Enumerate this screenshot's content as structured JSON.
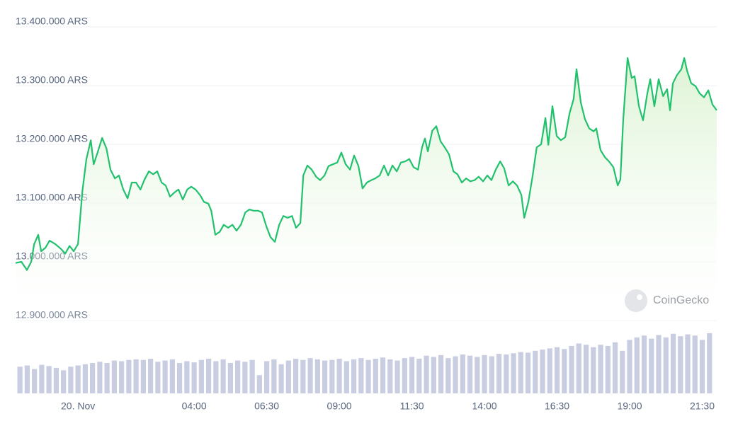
{
  "chart_data": [
    {
      "type": "line",
      "watermark": "CoinGecko",
      "color": "#21c16d",
      "grid": true,
      "xlim": [
        -2.15,
        22.0
      ],
      "xticks": [
        {
          "value": 0,
          "label": "20. Nov"
        },
        {
          "value": 4,
          "label": "04:00"
        },
        {
          "value": 6.5,
          "label": "06:30"
        },
        {
          "value": 9,
          "label": "09:00"
        },
        {
          "value": 11.5,
          "label": "11:30"
        },
        {
          "value": 14,
          "label": "14:00"
        },
        {
          "value": 16.5,
          "label": "16:30"
        },
        {
          "value": 19,
          "label": "19:00"
        },
        {
          "value": 21.5,
          "label": "21:30"
        }
      ],
      "ylim": [
        12900000,
        13400000
      ],
      "yticks": [
        {
          "value": 12900000,
          "label": "12.900.000 ARS"
        },
        {
          "value": 13000000,
          "label": "13.000.000 ARS"
        },
        {
          "value": 13100000,
          "label": "13.100.000 ARS"
        },
        {
          "value": 13200000,
          "label": "13.200.000 ARS"
        },
        {
          "value": 13300000,
          "label": "13.300.000 ARS"
        },
        {
          "value": 13400000,
          "label": "13.400.000 ARS"
        }
      ],
      "x": [
        -2.15,
        -1.95,
        -1.76,
        -1.61,
        -1.51,
        -1.37,
        -1.27,
        -1.12,
        -0.98,
        -0.78,
        -0.59,
        -0.44,
        -0.29,
        -0.15,
        0,
        0.15,
        0.29,
        0.44,
        0.54,
        0.68,
        0.83,
        0.98,
        1.12,
        1.27,
        1.41,
        1.56,
        1.71,
        1.85,
        2.0,
        2.15,
        2.29,
        2.44,
        2.59,
        2.73,
        2.88,
        3.02,
        3.17,
        3.32,
        3.46,
        3.61,
        3.76,
        3.9,
        4.05,
        4.2,
        4.34,
        4.49,
        4.59,
        4.73,
        4.88,
        5.02,
        5.17,
        5.32,
        5.46,
        5.61,
        5.76,
        5.9,
        6.05,
        6.2,
        6.34,
        6.49,
        6.63,
        6.78,
        6.93,
        7.07,
        7.22,
        7.37,
        7.51,
        7.66,
        7.76,
        7.9,
        8.05,
        8.2,
        8.34,
        8.49,
        8.63,
        8.78,
        8.93,
        9.07,
        9.22,
        9.37,
        9.51,
        9.66,
        9.8,
        9.95,
        10.1,
        10.24,
        10.39,
        10.54,
        10.68,
        10.83,
        10.98,
        11.12,
        11.27,
        11.41,
        11.56,
        11.71,
        11.85,
        11.95,
        12.05,
        12.2,
        12.34,
        12.49,
        12.63,
        12.78,
        12.93,
        13.07,
        13.22,
        13.37,
        13.51,
        13.66,
        13.8,
        13.95,
        14.1,
        14.24,
        14.39,
        14.54,
        14.68,
        14.83,
        14.98,
        15.12,
        15.27,
        15.37,
        15.51,
        15.66,
        15.8,
        15.95,
        16.1,
        16.2,
        16.34,
        16.49,
        16.63,
        16.78,
        16.93,
        17.07,
        17.17,
        17.32,
        17.46,
        17.61,
        17.76,
        17.85,
        18.0,
        18.15,
        18.29,
        18.44,
        18.59,
        18.68,
        18.78,
        18.93,
        19.07,
        19.17,
        19.32,
        19.46,
        19.61,
        19.71,
        19.85,
        20.0,
        20.15,
        20.29,
        20.39,
        20.49,
        20.63,
        20.78,
        20.88,
        20.98,
        21.12,
        21.27,
        21.41,
        21.56,
        21.71,
        21.85,
        22.0
      ],
      "series": [
        {
          "values": [
            12998000,
            13000000,
            12986000,
            13000000,
            13030000,
            13046000,
            13018000,
            13024000,
            13036000,
            13030000,
            13022000,
            13014000,
            13027000,
            13018000,
            13030000,
            13120000,
            13175000,
            13207000,
            13166000,
            13187000,
            13211000,
            13193000,
            13157000,
            13142000,
            13147000,
            13123000,
            13108000,
            13135000,
            13135000,
            13123000,
            13140000,
            13154000,
            13149000,
            13154000,
            13135000,
            13130000,
            13111000,
            13118000,
            13123000,
            13106000,
            13123000,
            13128000,
            13123000,
            13114000,
            13102000,
            13099000,
            13087000,
            13046000,
            13051000,
            13063000,
            13058000,
            13063000,
            13053000,
            13063000,
            13084000,
            13089000,
            13087000,
            13087000,
            13084000,
            13060000,
            13042000,
            13034000,
            13063000,
            13078000,
            13075000,
            13078000,
            13058000,
            13066000,
            13147000,
            13164000,
            13157000,
            13145000,
            13139000,
            13147000,
            13163000,
            13166000,
            13169000,
            13186000,
            13166000,
            13157000,
            13181000,
            13163000,
            13125000,
            13135000,
            13139000,
            13142000,
            13147000,
            13164000,
            13147000,
            13164000,
            13154000,
            13169000,
            13171000,
            13175000,
            13161000,
            13157000,
            13195000,
            13210000,
            13188000,
            13223000,
            13231000,
            13205000,
            13195000,
            13183000,
            13154000,
            13149000,
            13135000,
            13142000,
            13137000,
            13139000,
            13145000,
            13137000,
            13147000,
            13139000,
            13157000,
            13171000,
            13159000,
            13130000,
            13137000,
            13130000,
            13114000,
            13075000,
            13102000,
            13147000,
            13195000,
            13200000,
            13245000,
            13199000,
            13265000,
            13214000,
            13207000,
            13212000,
            13253000,
            13277000,
            13328000,
            13271000,
            13243000,
            13227000,
            13222000,
            13227000,
            13190000,
            13178000,
            13171000,
            13161000,
            13130000,
            13140000,
            13243000,
            13347000,
            13313000,
            13316000,
            13265000,
            13241000,
            13287000,
            13311000,
            13265000,
            13311000,
            13282000,
            13294000,
            13258000,
            13304000,
            13318000,
            13328000,
            13347000,
            13325000,
            13304000,
            13299000,
            13287000,
            13280000,
            13292000,
            13268000,
            13258000
          ]
        }
      ]
    },
    {
      "type": "bar",
      "color": "#c9cde1",
      "xlim": [
        -2.15,
        22.0
      ],
      "ylim": [
        0,
        100
      ],
      "x": [
        -2,
        -1.75,
        -1.5,
        -1.25,
        -1,
        -0.75,
        -0.5,
        -0.25,
        0,
        0.25,
        0.5,
        0.75,
        1,
        1.25,
        1.5,
        1.75,
        2,
        2.25,
        2.5,
        2.75,
        3,
        3.25,
        3.5,
        3.75,
        4,
        4.25,
        4.5,
        4.75,
        5,
        5.25,
        5.5,
        5.75,
        6,
        6.25,
        6.5,
        6.75,
        7,
        7.25,
        7.5,
        7.75,
        8,
        8.25,
        8.5,
        8.75,
        9,
        9.25,
        9.5,
        9.75,
        10,
        10.25,
        10.5,
        10.75,
        11,
        11.25,
        11.5,
        11.75,
        12,
        12.25,
        12.5,
        12.75,
        13,
        13.25,
        13.5,
        13.75,
        14,
        14.25,
        14.5,
        14.75,
        15,
        15.25,
        15.5,
        15.75,
        16,
        16.25,
        16.5,
        16.75,
        17,
        17.25,
        17.5,
        17.75,
        18,
        18.25,
        18.5,
        18.75,
        19,
        19.25,
        19.5,
        19.75,
        20,
        20.25,
        20.5,
        20.75,
        21,
        21.25,
        21.5,
        21.75
      ],
      "values": [
        44,
        46,
        40,
        47,
        45,
        42,
        38,
        44,
        46,
        48,
        50,
        52,
        50,
        54,
        53,
        55,
        56,
        55,
        57,
        52,
        54,
        56,
        50,
        53,
        51,
        55,
        57,
        53,
        56,
        50,
        54,
        52,
        55,
        30,
        53,
        56,
        48,
        54,
        57,
        55,
        58,
        56,
        54,
        55,
        57,
        53,
        56,
        58,
        55,
        57,
        59,
        56,
        54,
        58,
        60,
        57,
        62,
        60,
        63,
        58,
        61,
        64,
        62,
        60,
        63,
        61,
        65,
        64,
        66,
        68,
        67,
        70,
        72,
        74,
        76,
        73,
        78,
        82,
        80,
        76,
        80,
        78,
        84,
        70,
        88,
        92,
        95,
        90,
        96,
        92,
        98,
        94,
        97,
        95,
        88,
        99
      ]
    }
  ]
}
